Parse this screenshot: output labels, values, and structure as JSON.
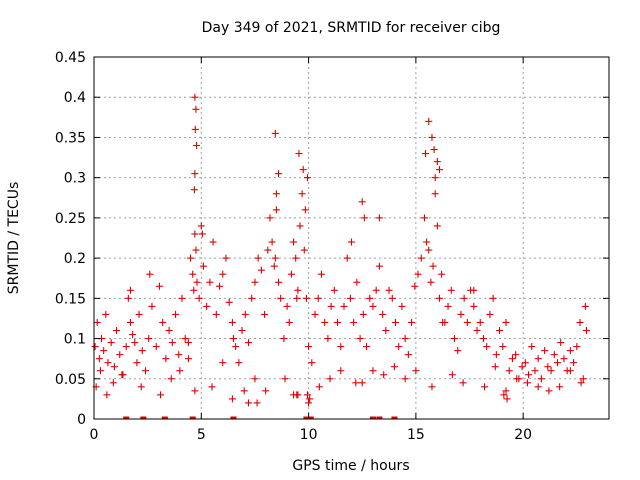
{
  "chart_data": {
    "type": "scatter",
    "title": "Day 349 of 2021, SRMTID for receiver cibg",
    "xlabel": "GPS time / hours",
    "ylabel": "SRMTID / TECUs",
    "xlim": [
      0,
      24
    ],
    "ylim": [
      0,
      0.45
    ],
    "xticks": [
      0,
      5,
      10,
      15,
      20
    ],
    "xtick_labels": [
      "0",
      "5",
      "10",
      "15",
      "20"
    ],
    "yticks": [
      0,
      0.05,
      0.1,
      0.15,
      0.2,
      0.25,
      0.3,
      0.35,
      0.4,
      0.45
    ],
    "ytick_labels": [
      "0",
      "0.05",
      "0.1",
      "0.15",
      "0.2",
      "0.25",
      "0.3",
      "0.35",
      "0.4",
      "0.45"
    ],
    "grid": true,
    "marker": "plus",
    "color": "#e00000",
    "series": [
      {
        "name": "SRMTID",
        "x": [
          0.05,
          0.15,
          0.25,
          0.35,
          0.45,
          0.55,
          0.65,
          0.8,
          0.95,
          1.05,
          1.2,
          1.35,
          1.5,
          1.6,
          1.7,
          1.8,
          1.9,
          2.0,
          2.1,
          2.25,
          2.4,
          2.55,
          2.7,
          2.9,
          3.05,
          3.2,
          3.35,
          3.5,
          3.65,
          3.8,
          3.95,
          4.1,
          4.25,
          4.4,
          4.5,
          4.6,
          4.65,
          4.7,
          4.75,
          4.8,
          4.9,
          5.0,
          5.1,
          5.25,
          5.4,
          5.55,
          5.7,
          5.85,
          6.0,
          6.15,
          6.3,
          6.45,
          6.6,
          6.75,
          6.9,
          7.05,
          7.2,
          7.35,
          7.5,
          7.65,
          7.8,
          7.95,
          8.1,
          8.2,
          8.3,
          8.4,
          8.5,
          8.6,
          8.7,
          8.85,
          9.0,
          9.1,
          9.2,
          9.3,
          9.4,
          9.5,
          9.6,
          9.7,
          9.8,
          9.9,
          10.0,
          10.15,
          10.3,
          10.45,
          10.6,
          10.75,
          10.9,
          11.05,
          11.2,
          11.35,
          11.5,
          11.65,
          11.8,
          11.95,
          12.1,
          12.25,
          12.4,
          12.55,
          12.7,
          12.85,
          13.0,
          13.15,
          13.3,
          13.45,
          13.6,
          13.75,
          13.9,
          14.05,
          14.2,
          14.35,
          14.5,
          14.65,
          14.8,
          14.95,
          15.1,
          15.25,
          15.4,
          15.5,
          15.6,
          15.7,
          15.8,
          15.9,
          16.0,
          16.1,
          16.2,
          16.35,
          16.5,
          16.65,
          16.8,
          16.95,
          17.1,
          17.25,
          17.4,
          17.55,
          17.7,
          17.85,
          18.0,
          18.15,
          18.3,
          18.45,
          18.6,
          18.75,
          18.9,
          19.05,
          19.2,
          19.35,
          19.5,
          19.65,
          19.8,
          19.95,
          20.1,
          20.25,
          20.4,
          20.55,
          20.7,
          20.85,
          21.0,
          21.15,
          21.3,
          21.45,
          21.6,
          21.75,
          21.9,
          22.05,
          22.2,
          22.35,
          22.5,
          22.65,
          22.8,
          22.9,
          0.1,
          0.3,
          0.6,
          0.9,
          1.3,
          1.7,
          2.2,
          2.6,
          3.1,
          3.6,
          4.0,
          4.4,
          4.7,
          5.05,
          5.5,
          6.0,
          6.5,
          7.0,
          7.5,
          8.0,
          8.45,
          8.9,
          9.45,
          9.95,
          10.5,
          11.0,
          11.5,
          12.0,
          12.5,
          13.0,
          13.5,
          14.0,
          14.5,
          15.0,
          15.45,
          15.75,
          16.25,
          16.7,
          17.2,
          17.7,
          18.2,
          18.7,
          19.2,
          19.7,
          20.2,
          20.7,
          21.2,
          21.7,
          22.2,
          22.7,
          4.7,
          4.75,
          4.72,
          4.78,
          4.7,
          4.68,
          8.45,
          8.6,
          8.5,
          9.55,
          9.75,
          9.85,
          12.5,
          12.6,
          13.3,
          15.6,
          15.75,
          15.85,
          15.9,
          16.0,
          16.1,
          9.3,
          9.45,
          9.5,
          6.45,
          7.2,
          7.6,
          10.0,
          10.05,
          9.95,
          12.2,
          19.1,
          19.25,
          22.95
        ],
        "y": [
          0.09,
          0.12,
          0.075,
          0.1,
          0.085,
          0.13,
          0.07,
          0.095,
          0.065,
          0.11,
          0.08,
          0.055,
          0.09,
          0.15,
          0.12,
          0.105,
          0.095,
          0.07,
          0.13,
          0.085,
          0.06,
          0.1,
          0.14,
          0.09,
          0.165,
          0.12,
          0.075,
          0.11,
          0.095,
          0.13,
          0.08,
          0.15,
          0.1,
          0.075,
          0.2,
          0.18,
          0.16,
          0.23,
          0.21,
          0.17,
          0.15,
          0.24,
          0.19,
          0.14,
          0.17,
          0.22,
          0.13,
          0.165,
          0.18,
          0.2,
          0.145,
          0.12,
          0.09,
          0.07,
          0.11,
          0.13,
          0.095,
          0.15,
          0.17,
          0.2,
          0.185,
          0.13,
          0.21,
          0.25,
          0.22,
          0.19,
          0.26,
          0.17,
          0.15,
          0.1,
          0.14,
          0.12,
          0.18,
          0.22,
          0.2,
          0.16,
          0.24,
          0.28,
          0.21,
          0.15,
          0.09,
          0.07,
          0.13,
          0.15,
          0.18,
          0.12,
          0.1,
          0.14,
          0.16,
          0.12,
          0.09,
          0.14,
          0.2,
          0.15,
          0.12,
          0.17,
          0.1,
          0.13,
          0.09,
          0.15,
          0.14,
          0.16,
          0.19,
          0.13,
          0.11,
          0.16,
          0.15,
          0.12,
          0.09,
          0.14,
          0.1,
          0.08,
          0.12,
          0.165,
          0.18,
          0.2,
          0.25,
          0.22,
          0.21,
          0.17,
          0.19,
          0.28,
          0.24,
          0.15,
          0.18,
          0.12,
          0.14,
          0.16,
          0.1,
          0.085,
          0.13,
          0.15,
          0.12,
          0.16,
          0.14,
          0.11,
          0.12,
          0.1,
          0.09,
          0.13,
          0.15,
          0.08,
          0.11,
          0.09,
          0.12,
          0.06,
          0.075,
          0.08,
          0.05,
          0.065,
          0.07,
          0.055,
          0.09,
          0.06,
          0.075,
          0.05,
          0.085,
          0.065,
          0.06,
          0.08,
          0.07,
          0.095,
          0.075,
          0.06,
          0.085,
          0.07,
          0.09,
          0.12,
          0.05,
          0.14,
          0.04,
          0.06,
          0.03,
          0.045,
          0.055,
          0.16,
          0.04,
          0.18,
          0.03,
          0.05,
          0.06,
          0.095,
          0.035,
          0.23,
          0.04,
          0.07,
          0.1,
          0.035,
          0.05,
          0.035,
          0.2,
          0.05,
          0.15,
          0.3,
          0.04,
          0.05,
          0.06,
          0.22,
          0.045,
          0.06,
          0.055,
          0.065,
          0.05,
          0.06,
          0.33,
          0.04,
          0.12,
          0.055,
          0.045,
          0.16,
          0.04,
          0.065,
          0.035,
          0.05,
          0.045,
          0.04,
          0.035,
          0.04,
          0.06,
          0.045,
          0.4,
          0.385,
          0.36,
          0.34,
          0.305,
          0.285,
          0.355,
          0.305,
          0.28,
          0.33,
          0.31,
          0.26,
          0.27,
          0.25,
          0.25,
          0.37,
          0.35,
          0.335,
          0.3,
          0.32,
          0.31,
          0.03,
          0.03,
          0.03,
          0.025,
          0.02,
          0.02,
          0.02,
          0.025,
          0.03,
          0.045,
          0.03,
          0.025,
          0.11
        ],
        "zero_markers_x": [
          1.5,
          2.3,
          3.3,
          4.6,
          6.5,
          9.9,
          10.0,
          10.1,
          13.0,
          13.3,
          14.0
        ]
      }
    ]
  }
}
